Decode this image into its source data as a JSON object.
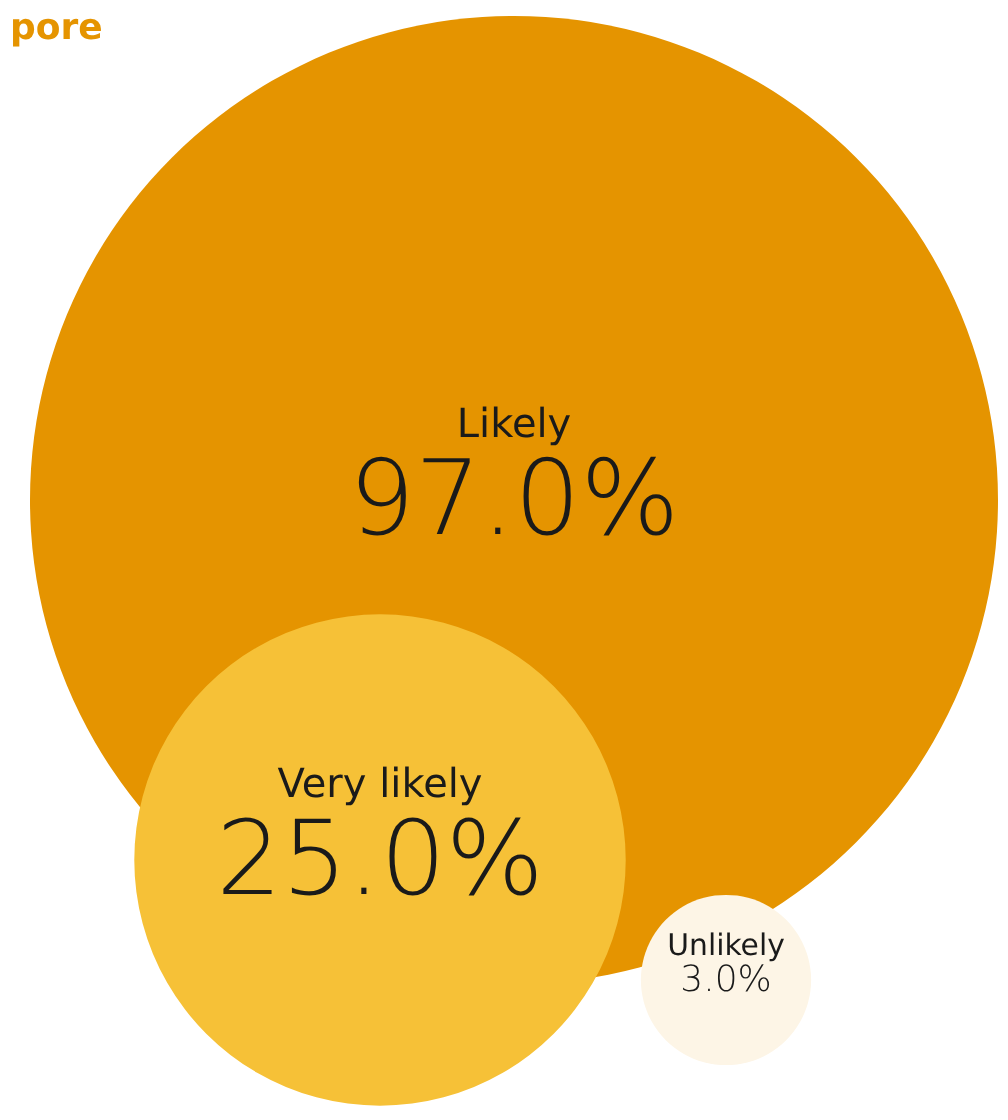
{
  "chart_data": {
    "type": "other",
    "title": "pore",
    "categories": [
      "Likely",
      "Very likely",
      "Unlikely"
    ],
    "values": [
      97,
      25,
      3
    ],
    "value_labels": [
      "97.0%",
      "25.0%",
      "3.0%"
    ],
    "colors": [
      "#e59400",
      "#f6c137",
      "#fdf5e6"
    ]
  }
}
